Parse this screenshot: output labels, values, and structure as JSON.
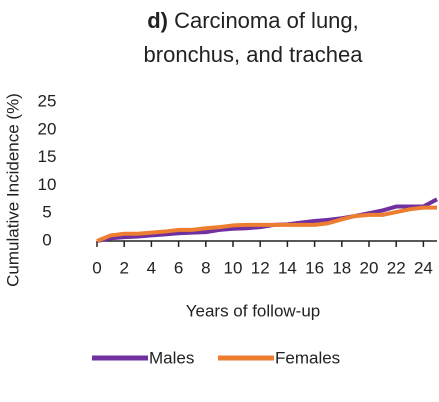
{
  "chart_data": {
    "type": "line",
    "panel_label": "d)",
    "title_lines": [
      "Carcinoma of lung,",
      "bronchus, and trachea"
    ],
    "x_label": "Years of follow-up",
    "y_label": "Cumulative Incidence (%)",
    "x": [
      0,
      1,
      2,
      3,
      4,
      5,
      6,
      7,
      8,
      9,
      10,
      11,
      12,
      13,
      14,
      15,
      16,
      17,
      18,
      19,
      20,
      21,
      22,
      23,
      24,
      25
    ],
    "series": [
      {
        "name": "Males",
        "color": "#7030a0",
        "values": [
          0,
          0.5,
          0.7,
          0.8,
          1,
          1.2,
          1.4,
          1.5,
          1.6,
          2,
          2.2,
          2.3,
          2.5,
          2.9,
          3,
          3.3,
          3.6,
          3.8,
          4.1,
          4.5,
          5,
          5.5,
          6.2,
          6.2,
          6.2,
          7.5
        ]
      },
      {
        "name": "Females",
        "color": "#ed7d31",
        "values": [
          0,
          1,
          1.3,
          1.3,
          1.5,
          1.7,
          2,
          2,
          2.3,
          2.5,
          2.8,
          2.9,
          2.9,
          2.9,
          2.9,
          2.9,
          2.9,
          3.2,
          3.9,
          4.5,
          4.7,
          4.7,
          5.2,
          5.7,
          6,
          6
        ]
      }
    ],
    "xlim": [
      0,
      25
    ],
    "xticks": [
      0,
      2,
      4,
      6,
      8,
      10,
      12,
      14,
      16,
      18,
      20,
      22,
      24
    ],
    "ylim": [
      0,
      25
    ],
    "yticks": [
      0,
      5,
      10,
      15,
      20,
      25
    ],
    "grid": false,
    "legend": "bottom"
  }
}
